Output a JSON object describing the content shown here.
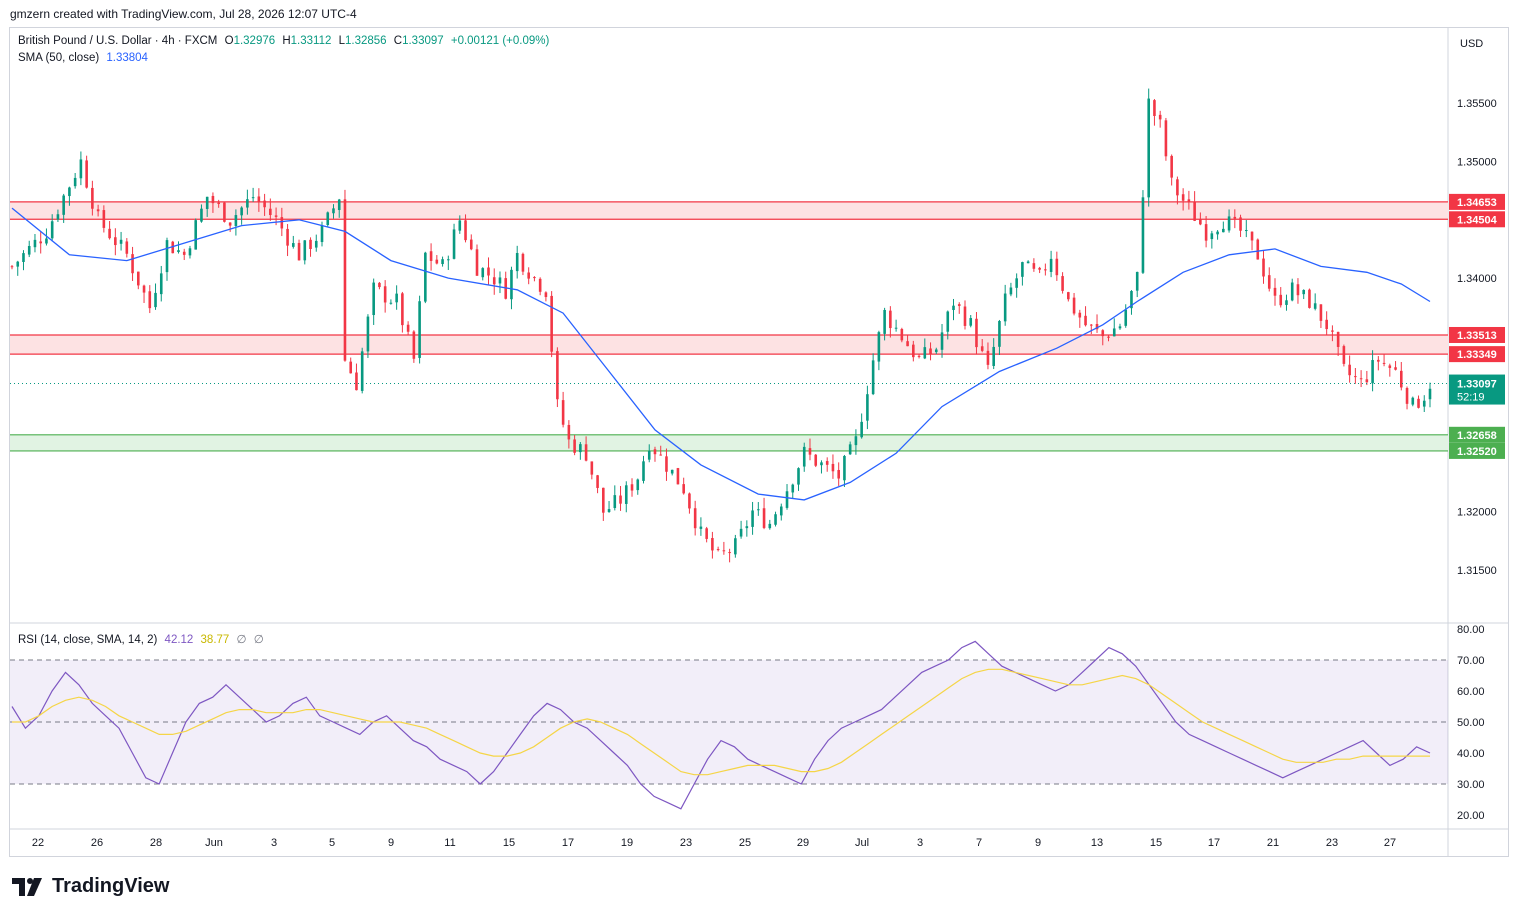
{
  "header": {
    "credit": "gmzern created with TradingView.com, Jul 28, 2026 12:07 UTC-4"
  },
  "legend": {
    "symbol": "British Pound / U.S. Dollar · 4h · FXCM",
    "open_label": "O",
    "open": "1.32976",
    "high_label": "H",
    "high": "1.33112",
    "low_label": "L",
    "low": "1.32856",
    "close_label": "C",
    "close": "1.33097",
    "change": "+0.00121 (+0.09%)",
    "sma_label": "SMA (50, close)",
    "sma_value": "1.33804"
  },
  "currency": "USD",
  "rsi_legend": {
    "label": "RSI (14, close, SMA, 14, 2)",
    "rsi": "42.12",
    "sma": "38.77",
    "extra1": "∅",
    "extra2": "∅"
  },
  "footer": {
    "brand": "TradingView"
  },
  "colors": {
    "up": "#089981",
    "down": "#f23645",
    "sma": "#2962ff",
    "rsi": "#7e57c2",
    "rsi_sma": "#f5d547",
    "resistance_fill": "#fde2e3",
    "resistance_line": "#f23645",
    "support_fill": "#e1f3e3",
    "support_line": "#4caf50"
  },
  "chart_data": [
    {
      "type": "candlestick",
      "title": "British Pound / U.S. Dollar · 4h · FXCM",
      "ylim": [
        1.311,
        1.3585
      ],
      "y_ticks": [
        "1.31500",
        "1.32000",
        "1.33000",
        "1.34000",
        "1.35000",
        "1.35500"
      ],
      "x_ticks": [
        "22",
        "26",
        "28",
        "Jun",
        "3",
        "5",
        "9",
        "11",
        "15",
        "17",
        "19",
        "23",
        "25",
        "29",
        "Jul",
        "3",
        "7",
        "9",
        "13",
        "15",
        "17",
        "21",
        "23",
        "27"
      ],
      "price_path": [
        [
          0,
          1.341
        ],
        [
          6,
          1.344
        ],
        [
          10,
          1.348
        ],
        [
          12,
          1.35
        ],
        [
          15,
          1.345
        ],
        [
          20,
          1.342
        ],
        [
          24,
          1.3375
        ],
        [
          27,
          1.343
        ],
        [
          30,
          1.342
        ],
        [
          34,
          1.347
        ],
        [
          38,
          1.345
        ],
        [
          42,
          1.347
        ],
        [
          46,
          1.345
        ],
        [
          50,
          1.342
        ],
        [
          54,
          1.344
        ],
        [
          57,
          1.347
        ],
        [
          58,
          1.333
        ],
        [
          60,
          1.331
        ],
        [
          63,
          1.339
        ],
        [
          67,
          1.338
        ],
        [
          70,
          1.333
        ],
        [
          72,
          1.342
        ],
        [
          75,
          1.341
        ],
        [
          78,
          1.345
        ],
        [
          81,
          1.341
        ],
        [
          84,
          1.34
        ],
        [
          86,
          1.339
        ],
        [
          88,
          1.342
        ],
        [
          91,
          1.34
        ],
        [
          93,
          1.339
        ],
        [
          95,
          1.329
        ],
        [
          97,
          1.326
        ],
        [
          100,
          1.325
        ],
        [
          103,
          1.32
        ],
        [
          106,
          1.321
        ],
        [
          109,
          1.323
        ],
        [
          111,
          1.326
        ],
        [
          114,
          1.324
        ],
        [
          117,
          1.322
        ],
        [
          120,
          1.318
        ],
        [
          123,
          1.316
        ],
        [
          126,
          1.317
        ],
        [
          129,
          1.32
        ],
        [
          132,
          1.319
        ],
        [
          135,
          1.322
        ],
        [
          138,
          1.325
        ],
        [
          141,
          1.324
        ],
        [
          144,
          1.323
        ],
        [
          147,
          1.326
        ],
        [
          150,
          1.333
        ],
        [
          152,
          1.337
        ],
        [
          155,
          1.335
        ],
        [
          158,
          1.333
        ],
        [
          161,
          1.334
        ],
        [
          164,
          1.338
        ],
        [
          167,
          1.336
        ],
        [
          170,
          1.332
        ],
        [
          173,
          1.338
        ],
        [
          176,
          1.341
        ],
        [
          179,
          1.34
        ],
        [
          181,
          1.342
        ],
        [
          184,
          1.338
        ],
        [
          187,
          1.336
        ],
        [
          190,
          1.335
        ],
        [
          193,
          1.336
        ],
        [
          196,
          1.34
        ],
        [
          198,
          1.355
        ],
        [
          200,
          1.353
        ],
        [
          202,
          1.348
        ],
        [
          205,
          1.346
        ],
        [
          208,
          1.344
        ],
        [
          211,
          1.345
        ],
        [
          214,
          1.344
        ],
        [
          217,
          1.342
        ],
        [
          220,
          1.338
        ],
        [
          223,
          1.339
        ],
        [
          226,
          1.338
        ],
        [
          229,
          1.336
        ],
        [
          232,
          1.332
        ],
        [
          235,
          1.331
        ],
        [
          238,
          1.333
        ],
        [
          241,
          1.332
        ],
        [
          244,
          1.329
        ],
        [
          246,
          1.33
        ],
        [
          247,
          1.331
        ]
      ],
      "sma_path": [
        [
          0,
          1.346
        ],
        [
          10,
          1.342
        ],
        [
          20,
          1.3415
        ],
        [
          30,
          1.343
        ],
        [
          40,
          1.3445
        ],
        [
          50,
          1.345
        ],
        [
          58,
          1.344
        ],
        [
          66,
          1.3415
        ],
        [
          76,
          1.34
        ],
        [
          88,
          1.339
        ],
        [
          96,
          1.337
        ],
        [
          104,
          1.332
        ],
        [
          112,
          1.327
        ],
        [
          120,
          1.324
        ],
        [
          130,
          1.3215
        ],
        [
          138,
          1.321
        ],
        [
          146,
          1.3225
        ],
        [
          154,
          1.325
        ],
        [
          162,
          1.329
        ],
        [
          172,
          1.332
        ],
        [
          182,
          1.334
        ],
        [
          190,
          1.336
        ],
        [
          196,
          1.338
        ],
        [
          204,
          1.3405
        ],
        [
          212,
          1.342
        ],
        [
          220,
          1.3425
        ],
        [
          228,
          1.341
        ],
        [
          236,
          1.3405
        ],
        [
          242,
          1.3395
        ],
        [
          247,
          1.338
        ]
      ],
      "zones": [
        {
          "kind": "resistance",
          "top": "1.34653",
          "bottom": "1.34504",
          "top_v": 1.34653,
          "bottom_v": 1.34504
        },
        {
          "kind": "resistance",
          "top": "1.33513",
          "bottom": "1.33349",
          "top_v": 1.33513,
          "bottom_v": 1.33349
        },
        {
          "kind": "support",
          "top": "1.32658",
          "bottom": "1.32520",
          "top_v": 1.32658,
          "bottom_v": 1.3252
        }
      ],
      "last_price": {
        "value": "1.33097",
        "value_v": 1.33097,
        "countdown": "52:19"
      }
    },
    {
      "type": "line",
      "title": "RSI (14, close, SMA, 14, 2)",
      "ylim": [
        16,
        81
      ],
      "y_ticks": [
        "20.00",
        "30.00",
        "40.00",
        "50.00",
        "60.00",
        "70.00",
        "80.00"
      ],
      "band": [
        30,
        70
      ],
      "series": [
        {
          "name": "RSI",
          "values": [
            55,
            48,
            52,
            60,
            66,
            62,
            56,
            52,
            48,
            40,
            32,
            30,
            40,
            50,
            56,
            58,
            62,
            58,
            54,
            50,
            52,
            56,
            58,
            52,
            50,
            48,
            46,
            50,
            52,
            48,
            44,
            42,
            38,
            36,
            34,
            30,
            34,
            40,
            46,
            52,
            56,
            54,
            50,
            48,
            44,
            40,
            36,
            30,
            26,
            24,
            22,
            30,
            38,
            44,
            42,
            38,
            36,
            34,
            32,
            30,
            38,
            44,
            48,
            50,
            52,
            54,
            58,
            62,
            66,
            68,
            70,
            74,
            76,
            72,
            68,
            66,
            64,
            62,
            60,
            62,
            66,
            70,
            74,
            72,
            68,
            62,
            56,
            50,
            46,
            44,
            42,
            40,
            38,
            36,
            34,
            32,
            34,
            36,
            38,
            40,
            42,
            44,
            40,
            36,
            38,
            42,
            40
          ]
        },
        {
          "name": "RSI SMA",
          "values": [
            50,
            50,
            52,
            55,
            57,
            58,
            57,
            55,
            52,
            50,
            48,
            46,
            46,
            47,
            49,
            51,
            53,
            54,
            54,
            53,
            53,
            53,
            54,
            54,
            53,
            52,
            51,
            50,
            50,
            50,
            49,
            48,
            46,
            44,
            42,
            40,
            39,
            39,
            40,
            42,
            45,
            48,
            50,
            51,
            50,
            48,
            46,
            43,
            40,
            37,
            34,
            33,
            33,
            34,
            35,
            36,
            36,
            36,
            35,
            34,
            34,
            35,
            37,
            40,
            43,
            46,
            49,
            52,
            55,
            58,
            61,
            64,
            66,
            67,
            67,
            66,
            65,
            64,
            63,
            62,
            62,
            63,
            64,
            65,
            64,
            62,
            59,
            56,
            53,
            50,
            48,
            46,
            44,
            42,
            40,
            38,
            37,
            37,
            37,
            38,
            38,
            39,
            39,
            39,
            39,
            39,
            39
          ]
        }
      ]
    }
  ]
}
